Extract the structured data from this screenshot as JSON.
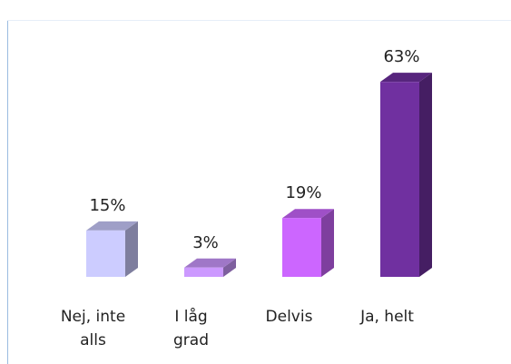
{
  "chart_data": {
    "type": "bar3d",
    "categories": [
      "Nej, inte alls",
      "I låg grad",
      "Delvis",
      "Ja, helt"
    ],
    "values": [
      15,
      3,
      19,
      63
    ],
    "value_labels": [
      "15%",
      "3%",
      "19%",
      "63%"
    ],
    "colors": [
      "#ccccff",
      "#cc99ff",
      "#cc66ff",
      "#7030a0"
    ]
  }
}
